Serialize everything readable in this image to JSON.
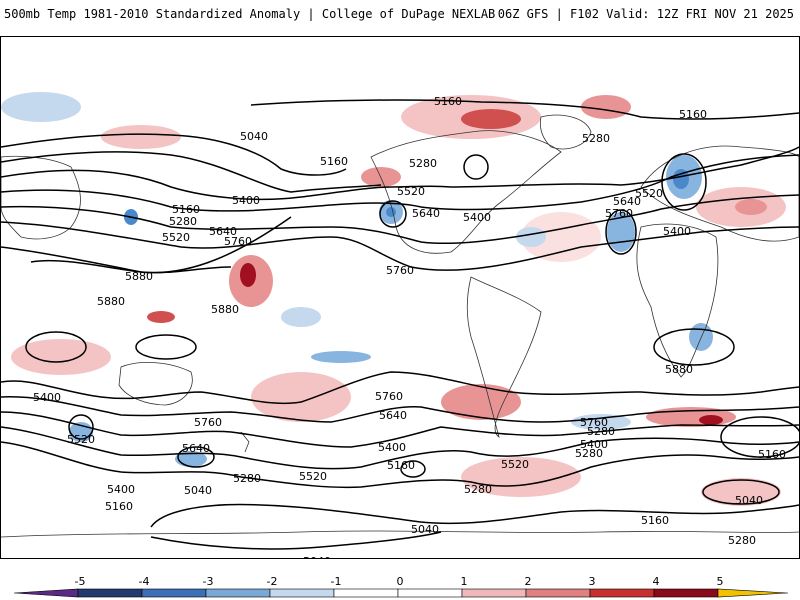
{
  "header": {
    "left_title": "500mb Temp 1981-2010 Standardized Anomaly | College of DuPage NEXLAB",
    "right_title": "06Z GFS | F102 Valid: 12Z FRI NOV 21 2025"
  },
  "map": {
    "contour_labels": [
      "5160",
      "5160",
      "5040",
      "5160",
      "5280",
      "5520",
      "5280",
      "5640",
      "5400",
      "5520",
      "5640",
      "5760",
      "5400",
      "5160",
      "5280",
      "5520",
      "5640",
      "5760",
      "5400",
      "5880",
      "5880",
      "5880",
      "5760",
      "5400",
      "5880",
      "5880",
      "5760",
      "5640",
      "5760",
      "5640",
      "5520",
      "5400",
      "5280",
      "5160",
      "5040",
      "5040",
      "5040",
      "5160",
      "5280",
      "5400",
      "5520",
      "5640",
      "5760",
      "5400",
      "5520",
      "5160",
      "5280",
      "5400",
      "5280",
      "5160",
      "5160",
      "5040",
      "5280",
      "5160",
      "5040"
    ],
    "colors": {
      "warm_light": "#f4c4c4",
      "warm_mid": "#e89494",
      "warm_strong": "#d05050",
      "warm_extreme": "#a01020",
      "cool_light": "#c4d8ee",
      "cool_mid": "#88b4e0",
      "cool_strong": "#4a88cc",
      "contour": "#000000",
      "border": "#333333"
    }
  },
  "colorbar": {
    "tick_labels": [
      "-5",
      "-4",
      "-3",
      "-2",
      "-1",
      "0",
      "1",
      "2",
      "3",
      "4",
      "5"
    ],
    "colors": [
      "#5b2a86",
      "#233a6e",
      "#3b6fb6",
      "#7aa9d8",
      "#c4d8ee",
      "#ffffff",
      "#ffffff",
      "#f0b8b8",
      "#e08080",
      "#c83030",
      "#8b0a1a",
      "#f2c200"
    ]
  }
}
